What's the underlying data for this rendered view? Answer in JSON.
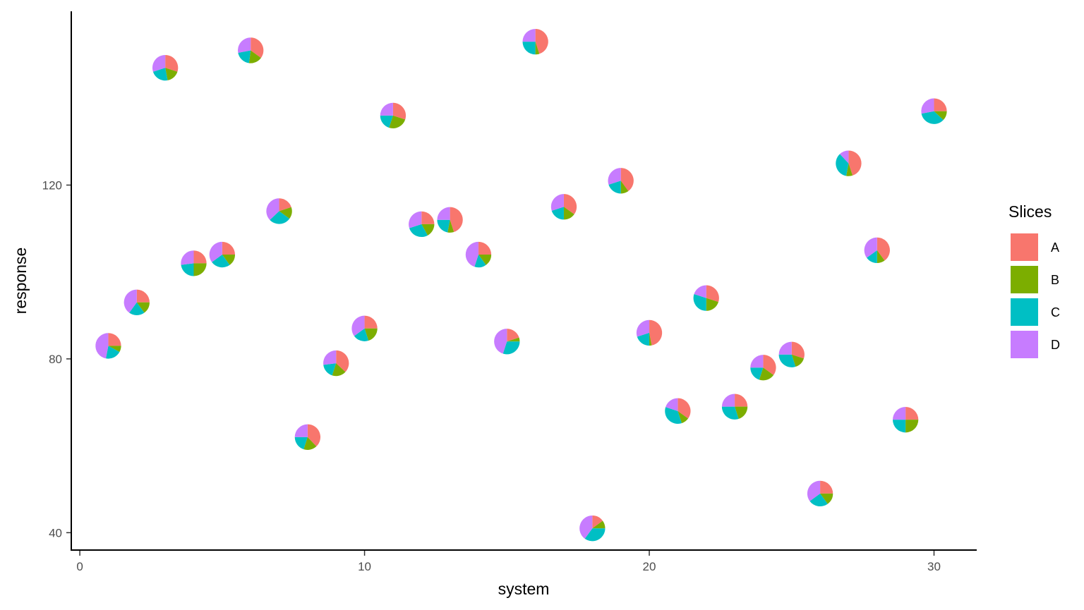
{
  "chart_data": {
    "type": "scatter",
    "subtype": "scatter-pie",
    "title": "",
    "xlabel": "system",
    "ylabel": "response",
    "xlim": [
      -0.3,
      31.5
    ],
    "ylim": [
      36,
      160
    ],
    "xticks": [
      0,
      10,
      20,
      30
    ],
    "yticks": [
      40,
      80,
      120
    ],
    "xtick_labels": [
      "0",
      "10",
      "20",
      "30"
    ],
    "ytick_labels": [
      "40",
      "80",
      "120"
    ],
    "legend": {
      "title": "Slices",
      "position": "right",
      "entries": [
        {
          "label": "A",
          "color": "#F8766D"
        },
        {
          "label": "B",
          "color": "#7CAE00"
        },
        {
          "label": "C",
          "color": "#00BFC4"
        },
        {
          "label": "D",
          "color": "#C77CFF"
        }
      ]
    },
    "slices": [
      "A",
      "B",
      "C",
      "D"
    ],
    "pie_radius_units": 0.45,
    "points": [
      {
        "x": 1,
        "y": 83,
        "A": 0.25,
        "B": 0.08,
        "C": 0.2,
        "D": 0.47
      },
      {
        "x": 2,
        "y": 93,
        "A": 0.25,
        "B": 0.15,
        "C": 0.2,
        "D": 0.4
      },
      {
        "x": 3,
        "y": 147,
        "A": 0.3,
        "B": 0.17,
        "C": 0.23,
        "D": 0.3
      },
      {
        "x": 4,
        "y": 102,
        "A": 0.25,
        "B": 0.25,
        "C": 0.23,
        "D": 0.27
      },
      {
        "x": 5,
        "y": 104,
        "A": 0.25,
        "B": 0.15,
        "C": 0.25,
        "D": 0.35
      },
      {
        "x": 6,
        "y": 151,
        "A": 0.35,
        "B": 0.17,
        "C": 0.2,
        "D": 0.28
      },
      {
        "x": 7,
        "y": 114,
        "A": 0.2,
        "B": 0.15,
        "C": 0.28,
        "D": 0.37
      },
      {
        "x": 8,
        "y": 62,
        "A": 0.38,
        "B": 0.17,
        "C": 0.2,
        "D": 0.25
      },
      {
        "x": 9,
        "y": 79,
        "A": 0.37,
        "B": 0.18,
        "C": 0.18,
        "D": 0.27
      },
      {
        "x": 10,
        "y": 87,
        "A": 0.25,
        "B": 0.2,
        "C": 0.2,
        "D": 0.35
      },
      {
        "x": 11,
        "y": 136,
        "A": 0.3,
        "B": 0.25,
        "C": 0.2,
        "D": 0.25
      },
      {
        "x": 12,
        "y": 111,
        "A": 0.25,
        "B": 0.17,
        "C": 0.28,
        "D": 0.3
      },
      {
        "x": 13,
        "y": 112,
        "A": 0.45,
        "B": 0.08,
        "C": 0.22,
        "D": 0.25
      },
      {
        "x": 14,
        "y": 104,
        "A": 0.25,
        "B": 0.15,
        "C": 0.15,
        "D": 0.45
      },
      {
        "x": 15,
        "y": 84,
        "A": 0.2,
        "B": 0.05,
        "C": 0.3,
        "D": 0.45
      },
      {
        "x": 16,
        "y": 153,
        "A": 0.45,
        "B": 0.05,
        "C": 0.25,
        "D": 0.25
      },
      {
        "x": 17,
        "y": 115,
        "A": 0.35,
        "B": 0.15,
        "C": 0.2,
        "D": 0.3
      },
      {
        "x": 18,
        "y": 41,
        "A": 0.15,
        "B": 0.1,
        "C": 0.35,
        "D": 0.4
      },
      {
        "x": 19,
        "y": 121,
        "A": 0.4,
        "B": 0.1,
        "C": 0.2,
        "D": 0.3
      },
      {
        "x": 20,
        "y": 86,
        "A": 0.47,
        "B": 0.03,
        "C": 0.2,
        "D": 0.3
      },
      {
        "x": 21,
        "y": 68,
        "A": 0.35,
        "B": 0.1,
        "C": 0.35,
        "D": 0.2
      },
      {
        "x": 22,
        "y": 94,
        "A": 0.3,
        "B": 0.2,
        "C": 0.3,
        "D": 0.2
      },
      {
        "x": 23,
        "y": 69,
        "A": 0.25,
        "B": 0.2,
        "C": 0.3,
        "D": 0.25
      },
      {
        "x": 24,
        "y": 78,
        "A": 0.35,
        "B": 0.2,
        "C": 0.2,
        "D": 0.25
      },
      {
        "x": 25,
        "y": 81,
        "A": 0.3,
        "B": 0.15,
        "C": 0.3,
        "D": 0.25
      },
      {
        "x": 26,
        "y": 49,
        "A": 0.25,
        "B": 0.15,
        "C": 0.25,
        "D": 0.35
      },
      {
        "x": 27,
        "y": 125,
        "A": 0.45,
        "B": 0.08,
        "C": 0.35,
        "D": 0.12
      },
      {
        "x": 28,
        "y": 105,
        "A": 0.4,
        "B": 0.1,
        "C": 0.15,
        "D": 0.35
      },
      {
        "x": 29,
        "y": 66,
        "A": 0.25,
        "B": 0.25,
        "C": 0.25,
        "D": 0.25
      },
      {
        "x": 30,
        "y": 137,
        "A": 0.25,
        "B": 0.12,
        "C": 0.35,
        "D": 0.28
      }
    ]
  }
}
